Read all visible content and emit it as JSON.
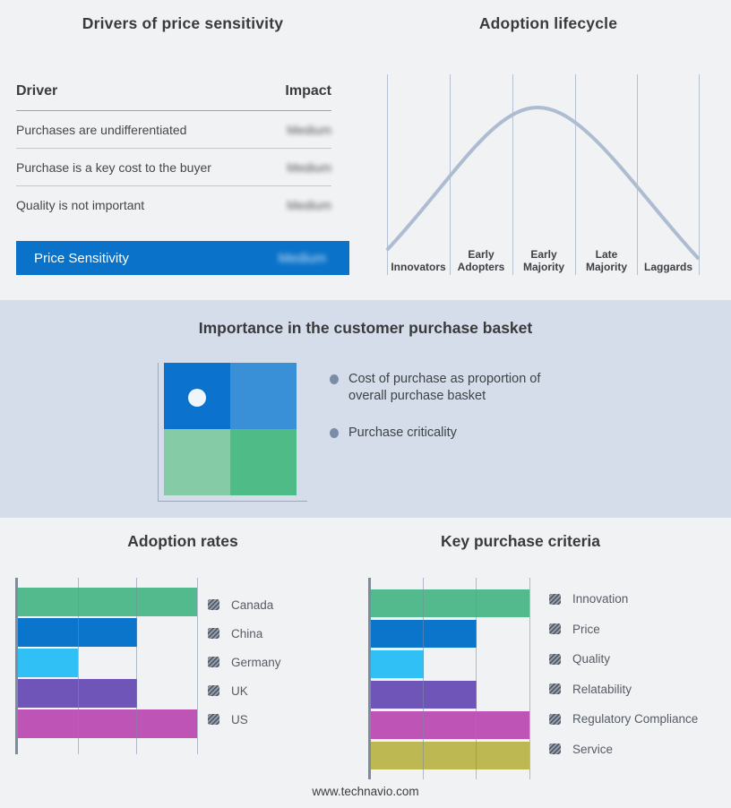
{
  "page": {
    "background": "#f1f2f4",
    "band_background": "#d4dde9",
    "accent_blue": "#0a72c9",
    "footer": "www.technavio.com"
  },
  "drivers_table": {
    "title": "Drivers of price sensitivity",
    "col_driver": "Driver",
    "col_impact": "Impact",
    "rows": [
      {
        "driver": "Purchases are undifferentiated",
        "impact": "Medium"
      },
      {
        "driver": "Purchase is a key cost to the buyer",
        "impact": "Medium"
      },
      {
        "driver": "Quality is not important",
        "impact": "Medium"
      }
    ],
    "summary_row": {
      "label": "Price Sensitivity",
      "impact": "Medium"
    }
  },
  "lifecycle": {
    "title": "Adoption lifecycle",
    "stages": [
      "Innovators",
      "Early Adopters",
      "Early Majority",
      "Late Majority",
      "Laggards"
    ],
    "curve_color": "#aebcd2"
  },
  "purchase_basket": {
    "title": "Importance in the customer purchase basket",
    "bullets": [
      "Cost of purchase as proportion of overall purchase basket",
      "Purchase criticality"
    ],
    "bullet_color": "#7b8ca7",
    "quadrant_colors": {
      "top_left": "#0b72ce",
      "top_right": "#3990d7",
      "bottom_left": "#85cba6",
      "bottom_right": "#4fbb87"
    }
  },
  "chart_data": [
    {
      "type": "table",
      "title": "Drivers of price sensitivity",
      "columns": [
        "Driver",
        "Impact"
      ],
      "rows": [
        [
          "Purchases are undifferentiated",
          "Medium"
        ],
        [
          "Purchase is a key cost to the buyer",
          "Medium"
        ],
        [
          "Quality is not important",
          "Medium"
        ],
        [
          "Price Sensitivity",
          "Medium"
        ]
      ]
    },
    {
      "type": "line",
      "title": "Adoption lifecycle",
      "categories": [
        "Innovators",
        "Early Adopters",
        "Early Majority",
        "Late Majority",
        "Laggards"
      ],
      "x_gridline_units": [
        0,
        1,
        2,
        2.4,
        3,
        4,
        5
      ],
      "values": [
        0,
        0.57,
        0.95,
        1.0,
        0.9,
        0.46,
        0
      ],
      "ylabel": "relative adoption (bell curve, unlabeled axes)",
      "grid": "vertical-only",
      "legend": "none"
    },
    {
      "type": "bar",
      "orientation": "horizontal",
      "title": "Adoption rates",
      "categories": [
        "Canada",
        "China",
        "Germany",
        "UK",
        "US"
      ],
      "values": [
        3,
        2,
        1,
        2,
        3
      ],
      "xmax": 3,
      "unit": "relative gridline units (axis unlabeled)",
      "colors": [
        "#52ba8c",
        "#0b74cb",
        "#30c0f5",
        "#6f55b8",
        "#bd54b6"
      ],
      "legend_position": "right"
    },
    {
      "type": "bar",
      "orientation": "horizontal",
      "title": "Key purchase criteria",
      "categories": [
        "Innovation",
        "Price",
        "Quality",
        "Relatability",
        "Regulatory Compliance",
        "Service"
      ],
      "values": [
        3,
        2,
        1,
        2,
        3,
        3
      ],
      "xmax": 3,
      "unit": "relative gridline units (axis unlabeled)",
      "colors": [
        "#52ba8c",
        "#0b74cb",
        "#30c0f5",
        "#6f55b8",
        "#bd54b6",
        "#bdb852"
      ],
      "legend_position": "right"
    }
  ]
}
